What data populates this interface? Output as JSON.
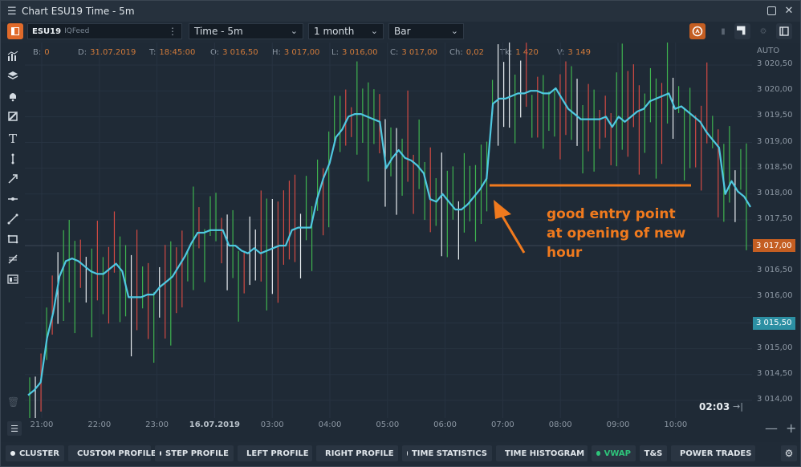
{
  "window": {
    "title": "Chart ESU19 Time - 5m"
  },
  "toolbar": {
    "symbol": "ESU19",
    "feed": "IQFeed",
    "interval": "Time - 5m",
    "period": "1 month",
    "chart_type": "Bar"
  },
  "infobar": {
    "b_label": "B:",
    "b_value": "0",
    "d_label": "D:",
    "d_value": "31.07.2019",
    "t_label": "T:",
    "t_value": "18:45:00",
    "o_label": "O:",
    "o_value": "3 016,50",
    "h_label": "H:",
    "h_value": "3 017,00",
    "l_label": "L:",
    "l_value": "3 016,00",
    "c_label": "C:",
    "c_value": "3 017,00",
    "ch_label": "Ch:",
    "ch_value": "0,02",
    "tk_label": "Tk:",
    "tk_value": "1 420",
    "v_label": "V:",
    "v_value": "3 149"
  },
  "yaxis": {
    "auto": "AUTO",
    "labels": [
      "3 020,50",
      "3 020,00",
      "3 019,50",
      "3 019,00",
      "3 018,50",
      "3 018,00",
      "3 017,50",
      "3 017,00",
      "3 016,50",
      "3 016,00",
      "3 015,50",
      "3 015,00",
      "3 014,50",
      "3 014,00"
    ],
    "price_tag": "3 017,00",
    "vwap_tag": "3 015,50"
  },
  "xaxis": {
    "labels": [
      "21:00",
      "22:00",
      "23:00",
      "16.07.2019",
      "03:00",
      "04:00",
      "05:00",
      "06:00",
      "07:00",
      "08:00",
      "09:00",
      "10:00"
    ]
  },
  "clock": "02:03",
  "annotation": {
    "line1": "good entry point",
    "line2": "at opening of new",
    "line3": "hour"
  },
  "bottom_tabs": [
    "CLUSTER",
    "CUSTOM PROFILE",
    "STEP PROFILE",
    "LEFT PROFILE",
    "RIGHT PROFILE",
    "TIME STATISTICS",
    "TIME HISTOGRAM",
    "VWAP",
    "T&S",
    "POWER TRADES"
  ],
  "colors": {
    "up": "#3fb34f",
    "down": "#d24a43",
    "doji": "#e8edf1",
    "vwap": "#4fc8e0",
    "accent": "#f07a1e",
    "price_tag": "#c45e22",
    "vwap_tag": "#2c8fa3"
  },
  "chart_data": {
    "type": "bar",
    "ylim": [
      3013.75,
      3020.75
    ],
    "vwap_series": [
      3014.1,
      3014.2,
      3014.35,
      3015.2,
      3015.7,
      3016.4,
      3016.7,
      3016.75,
      3016.7,
      3016.6,
      3016.5,
      3016.45,
      3016.45,
      3016.55,
      3016.65,
      3016.5,
      3016.0,
      3016.0,
      3016.0,
      3016.05,
      3016.05,
      3016.2,
      3016.3,
      3016.4,
      3016.6,
      3016.8,
      3017.05,
      3017.25,
      3017.25,
      3017.3,
      3017.3,
      3017.3,
      3017.0,
      3017.0,
      3016.9,
      3016.85,
      3016.95,
      3016.85,
      3016.9,
      3016.95,
      3017.0,
      3017.0,
      3017.3,
      3017.35,
      3017.35,
      3017.35,
      3017.9,
      3018.3,
      3018.6,
      3019.1,
      3019.25,
      3019.5,
      3019.55,
      3019.55,
      3019.5,
      3019.45,
      3019.4,
      3018.5,
      3018.7,
      3018.85,
      3018.7,
      3018.65,
      3018.55,
      3018.4,
      3017.9,
      3017.85,
      3018.0,
      3017.85,
      3017.7,
      3017.7,
      3017.8,
      3017.95,
      3018.1,
      3018.3,
      3019.75,
      3019.85,
      3019.85,
      3019.9,
      3019.95,
      3019.95,
      3020.0,
      3020.0,
      3019.95,
      3019.95,
      3020.05,
      3019.85,
      3019.65,
      3019.55,
      3019.45,
      3019.45,
      3019.45,
      3019.45,
      3019.5,
      3019.3,
      3019.5,
      3019.4,
      3019.5,
      3019.6,
      3019.65,
      3019.8,
      3019.85,
      3019.9,
      3019.95,
      3019.65,
      3019.7,
      3019.6,
      3019.5,
      3019.4,
      3019.2,
      3019.05,
      3018.9,
      3018.0,
      3018.25,
      3018.05,
      3017.95,
      3017.75
    ]
  }
}
